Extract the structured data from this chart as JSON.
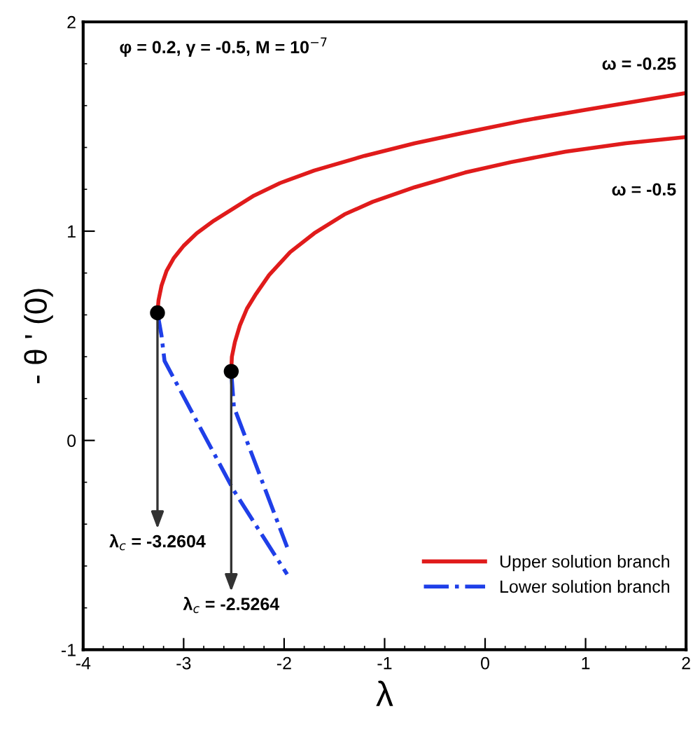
{
  "chart_data": {
    "type": "line",
    "xlabel": "λ",
    "ylabel": "- θ ' (0)",
    "xlim": [
      -4,
      2
    ],
    "ylim": [
      -1,
      2
    ],
    "xticks": [
      -4,
      -3,
      -2,
      -1,
      0,
      1,
      2
    ],
    "yticks": [
      -1,
      0,
      1,
      2
    ],
    "grid": false,
    "legend": "bottom right",
    "series": [
      {
        "name": "Upper solution branch",
        "color": "#e01b1b",
        "line_style": "solid",
        "x": [
          -3.2604,
          -3.25,
          -3.22,
          -3.17,
          -3.1,
          -3.0,
          -2.87,
          -2.7,
          -2.5,
          -2.3,
          -2.04,
          -1.7,
          -1.2,
          -0.7,
          -0.21,
          0.4,
          1.0,
          1.5,
          2.0
        ],
        "values": [
          0.61,
          0.67,
          0.74,
          0.81,
          0.87,
          0.93,
          0.99,
          1.05,
          1.11,
          1.17,
          1.23,
          1.29,
          1.36,
          1.42,
          1.47,
          1.53,
          1.58,
          1.62,
          1.66
        ]
      },
      {
        "color": "#e01b1b",
        "line_style": "solid",
        "x": [
          -2.5264,
          -2.52,
          -2.49,
          -2.44,
          -2.37,
          -2.28,
          -2.15,
          -1.94,
          -1.7,
          -1.4,
          -1.12,
          -0.7,
          -0.2,
          0.26,
          0.8,
          1.4,
          2.0
        ],
        "values": [
          0.33,
          0.4,
          0.47,
          0.55,
          0.63,
          0.7,
          0.79,
          0.9,
          0.99,
          1.08,
          1.14,
          1.21,
          1.28,
          1.33,
          1.38,
          1.42,
          1.45
        ]
      },
      {
        "name": "Lower solution branch",
        "color": "#1f3fe8",
        "line_style": "dashdot",
        "x": [
          -3.2604,
          -3.22,
          -3.19,
          -2.5,
          -1.97
        ],
        "values": [
          0.61,
          0.5,
          0.38,
          -0.24,
          -0.64
        ]
      },
      {
        "color": "#1f3fe8",
        "line_style": "dashdot",
        "x": [
          -2.5264,
          -2.5,
          -1.97
        ],
        "values": [
          0.33,
          0.16,
          -0.51
        ]
      },
      {
        "type": "scatter",
        "color": "#000000",
        "marker": "circle",
        "x": [
          -3.2604,
          -2.5264
        ],
        "values": [
          0.61,
          0.33
        ]
      }
    ],
    "annotations": [
      "φ = 0.2, γ = -0.5, M = 10$^{−7}$",
      {
        "text": "ω = -0.25",
        "x": 2.0,
        "y": 1.66
      },
      {
        "text": "ω = -0.5",
        "x": 2.0,
        "y": 1.45
      },
      {
        "text": "λ$_{c}$ = -3.2604",
        "x": -3.2604,
        "y": 0.61
      },
      {
        "text": "λ$_{c}$ = -2.5264",
        "x": -2.5264,
        "y": 0.33
      }
    ]
  }
}
